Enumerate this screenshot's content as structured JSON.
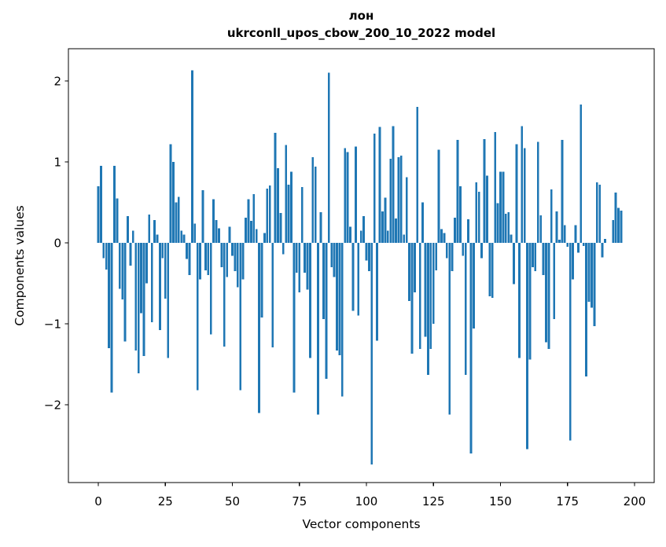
{
  "figure": {
    "background": "#ffffff"
  },
  "chart_data": {
    "type": "bar",
    "title": "лон",
    "subtitle": "ukrconll_upos_cbow_200_10_2022 model",
    "xlabel": "Vector components",
    "ylabel": "Components values",
    "x_ticks": [
      0,
      25,
      50,
      75,
      100,
      125,
      150,
      175,
      200
    ],
    "y_ticks": [
      2,
      1,
      0,
      -1,
      -2
    ],
    "y_tick_labels": [
      "2",
      "1",
      "0",
      "−1",
      "−2"
    ],
    "xlim": [
      -11.1,
      207.3
    ],
    "ylim": [
      -2.96,
      2.4
    ],
    "grid": false,
    "legend": "none",
    "bar_color": "#1f77b4",
    "n_components": 200,
    "values": [
      0.7,
      0.95,
      -0.19,
      -0.33,
      -1.3,
      -1.85,
      0.95,
      0.55,
      -0.57,
      -0.7,
      -1.22,
      0.33,
      -0.28,
      0.15,
      -1.33,
      -1.61,
      -0.87,
      -1.4,
      -0.5,
      0.35,
      -0.98,
      0.28,
      0.1,
      -1.08,
      -0.19,
      -0.69,
      -1.42,
      1.22,
      1.0,
      0.5,
      0.57,
      0.15,
      0.1,
      -0.2,
      -0.4,
      2.13,
      0.24,
      -1.82,
      -0.45,
      0.65,
      -0.34,
      -0.4,
      -1.13,
      0.54,
      0.28,
      0.18,
      -0.3,
      -1.28,
      -0.42,
      0.2,
      -0.16,
      -0.35,
      -0.55,
      -1.82,
      -0.45,
      0.31,
      0.54,
      0.27,
      0.6,
      0.17,
      -2.1,
      -0.92,
      0.12,
      0.67,
      0.71,
      -1.29,
      1.36,
      0.92,
      0.37,
      -0.14,
      1.21,
      0.72,
      0.88,
      -1.85,
      -0.37,
      -0.61,
      0.69,
      -0.37,
      -0.58,
      -1.42,
      1.06,
      0.94,
      -2.12,
      0.38,
      -0.94,
      -1.68,
      2.1,
      -0.3,
      -0.42,
      -1.33,
      -1.39,
      -1.9,
      1.17,
      1.12,
      0.2,
      -0.84,
      1.19,
      -0.9,
      0.15,
      0.33,
      -0.22,
      -0.35,
      -2.74,
      1.35,
      -1.21,
      1.43,
      0.39,
      0.56,
      0.15,
      1.04,
      1.44,
      0.3,
      1.06,
      1.08,
      0.1,
      0.81,
      -0.72,
      -1.37,
      -0.61,
      1.68,
      -1.31,
      0.5,
      -1.16,
      -1.63,
      -1.31,
      -1.0,
      -0.34,
      1.15,
      0.17,
      0.12,
      -0.19,
      -2.12,
      -0.35,
      0.31,
      1.27,
      0.7,
      -0.16,
      -1.63,
      0.29,
      -2.6,
      -1.06,
      0.75,
      0.63,
      -0.19,
      1.28,
      0.83,
      -0.66,
      -0.68,
      1.37,
      0.49,
      0.88,
      0.88,
      0.36,
      0.38,
      0.1,
      -0.51,
      1.22,
      -1.42,
      1.44,
      1.17,
      -2.55,
      -1.44,
      -0.3,
      -0.35,
      1.25,
      0.34,
      -0.4,
      -1.23,
      -1.31,
      0.66,
      -0.94,
      0.39,
      0.04,
      1.27,
      0.22,
      -0.05,
      -2.44,
      -0.45,
      0.22,
      -0.12,
      1.71,
      -0.04,
      -1.65,
      -0.73,
      -0.8,
      -1.03,
      0.75,
      0.72,
      -0.18,
      0.05,
      0.0,
      0.0,
      0.28,
      0.62,
      0.43,
      0.4,
      0.0,
      0.0,
      0.0,
      0.0
    ]
  }
}
